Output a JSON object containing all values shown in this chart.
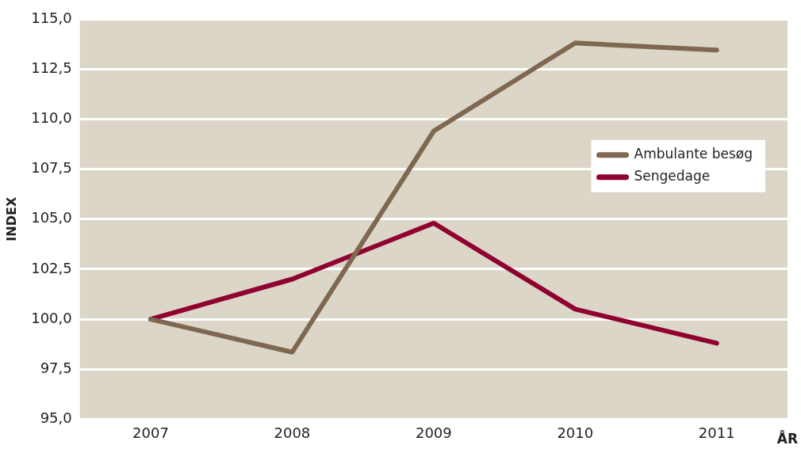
{
  "chart_data": {
    "type": "line",
    "xlabel": "ÅR",
    "ylabel": "INDEX",
    "categories": [
      "2007",
      "2008",
      "2009",
      "2010",
      "2011"
    ],
    "series": [
      {
        "name": "Ambulante besøg",
        "color": "#7f6750",
        "values": [
          100,
          98.35,
          109.4,
          113.8,
          113.45
        ]
      },
      {
        "name": "Sengedage",
        "color": "#900030",
        "values": [
          100,
          102,
          104.8,
          100.5,
          98.8
        ]
      }
    ],
    "ylim": [
      95,
      115
    ],
    "yticks": [
      {
        "value": 95,
        "label": "95,0"
      },
      {
        "value": 97.5,
        "label": "97,5"
      },
      {
        "value": 100,
        "label": "100,0"
      },
      {
        "value": 102.5,
        "label": "102,5"
      },
      {
        "value": 105,
        "label": "105,0"
      },
      {
        "value": 107.5,
        "label": "107,5"
      },
      {
        "value": 110,
        "label": "110,0"
      },
      {
        "value": 112.5,
        "label": "112,5"
      },
      {
        "value": 115,
        "label": "115,0"
      }
    ],
    "grid": "y",
    "legend": "right",
    "marker": "none",
    "line_style": "solid"
  }
}
